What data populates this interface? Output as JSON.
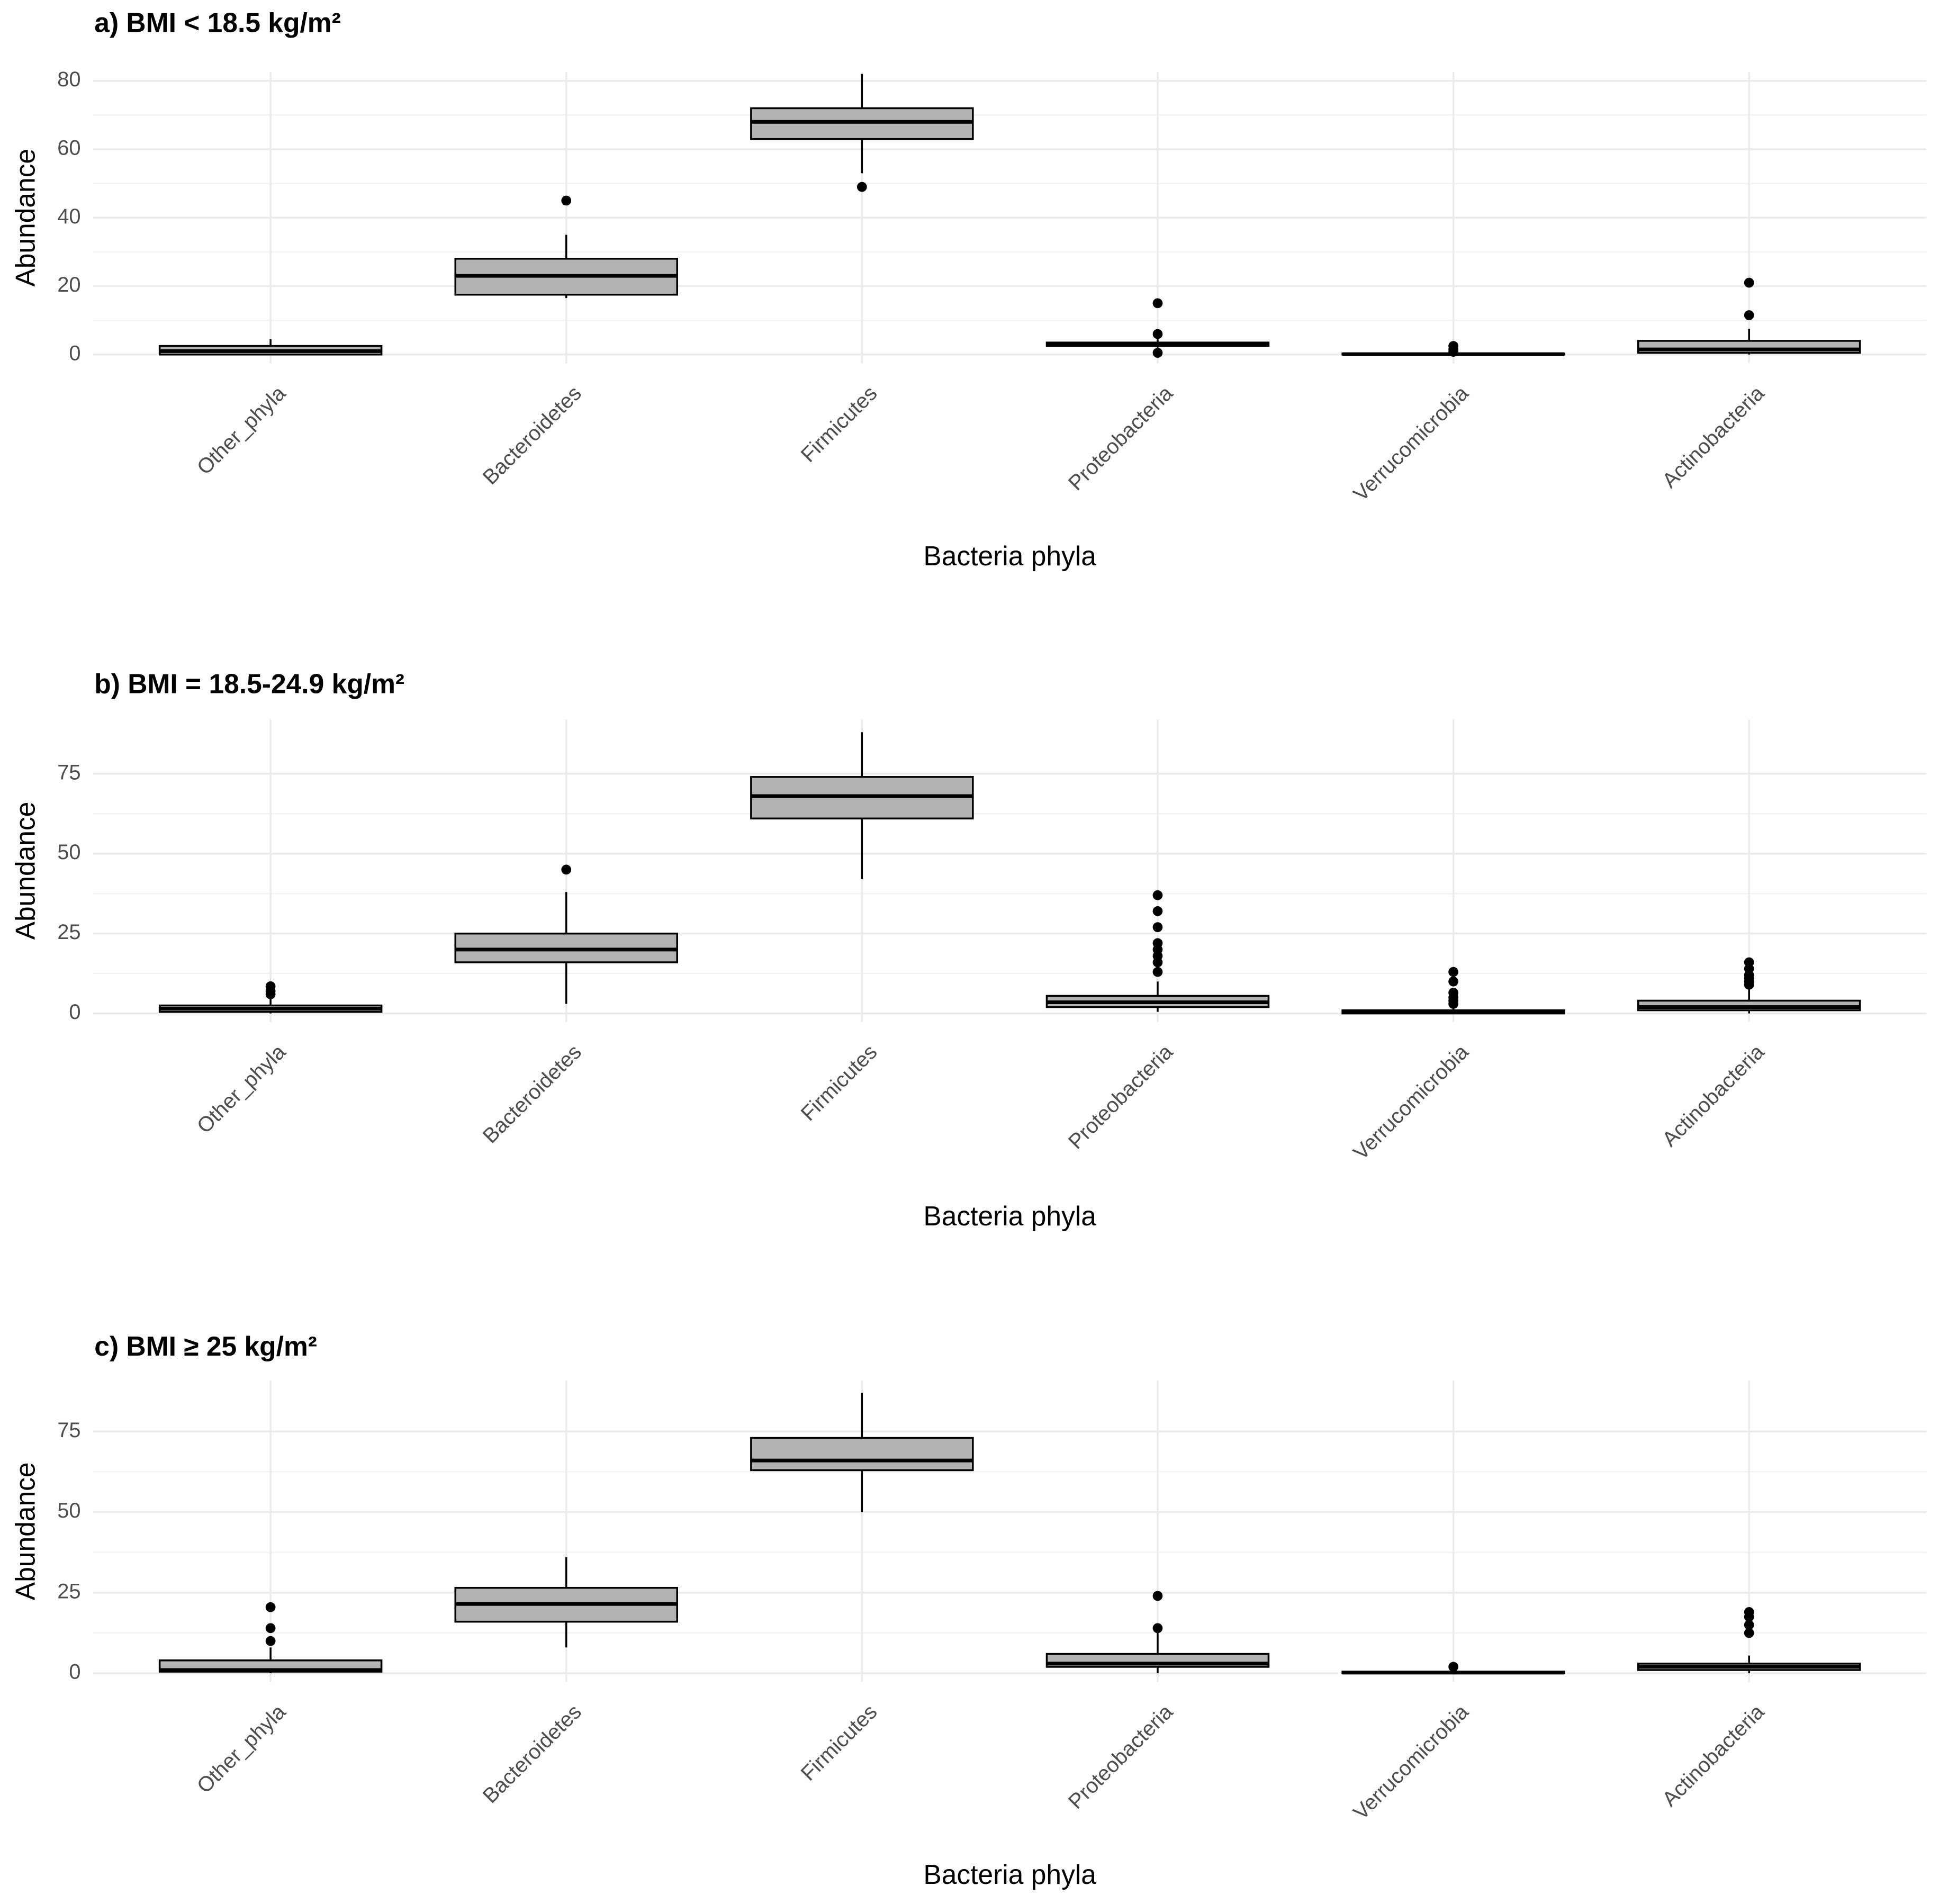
{
  "chart_data": [
    {
      "type": "box",
      "title": "a) BMI < 18.5 kg/m²",
      "x_label": "Bacteria phyla",
      "y_label": "Abundance",
      "color": "#b3b3b3",
      "grid": true,
      "ylim": [
        -2.6,
        82.6
      ],
      "yticks": [
        0,
        20,
        40,
        60,
        80
      ],
      "categories": [
        "Other_phyla",
        "Bacteroidetes",
        "Firmicutes",
        "Proteobacteria",
        "Verrucomicrobia",
        "Actinobacteria"
      ],
      "boxes": [
        {
          "min": 0,
          "q1": 0,
          "median": 1,
          "q3": 2.5,
          "max": 4.5,
          "outliers": []
        },
        {
          "min": 16.5,
          "q1": 17.5,
          "median": 23,
          "q3": 28,
          "max": 35,
          "outliers": [
            45
          ]
        },
        {
          "min": 53,
          "q1": 63,
          "median": 68,
          "q3": 72,
          "max": 82,
          "outliers": [
            49
          ]
        },
        {
          "min": 2,
          "q1": 2.5,
          "median": 3,
          "q3": 3.5,
          "max": 4.5,
          "outliers": [
            15,
            6,
            0.5
          ]
        },
        {
          "min": 0,
          "q1": 0,
          "median": 0.1,
          "q3": 0.3,
          "max": 0.5,
          "outliers": [
            2.5,
            1.5,
            0.8
          ]
        },
        {
          "min": 0,
          "q1": 0.5,
          "median": 1.5,
          "q3": 4,
          "max": 7.5,
          "outliers": [
            21,
            11.5
          ]
        }
      ]
    },
    {
      "type": "box",
      "title": "b) BMI = 18.5-24.9 kg/m²",
      "x_label": "Bacteria phyla",
      "y_label": "Abundance",
      "color": "#b3b3b3",
      "grid": true,
      "ylim": [
        -2.7,
        92
      ],
      "yticks": [
        0,
        25,
        50,
        75
      ],
      "categories": [
        "Other_phyla",
        "Bacteroidetes",
        "Firmicutes",
        "Proteobacteria",
        "Verrucomicrobia",
        "Actinobacteria"
      ],
      "boxes": [
        {
          "min": 0,
          "q1": 0.5,
          "median": 1.5,
          "q3": 2.5,
          "max": 5,
          "outliers": [
            8.5,
            7,
            6
          ]
        },
        {
          "min": 3,
          "q1": 16,
          "median": 20,
          "q3": 25,
          "max": 38,
          "outliers": [
            45
          ]
        },
        {
          "min": 42,
          "q1": 61,
          "median": 68,
          "q3": 74,
          "max": 88,
          "outliers": []
        },
        {
          "min": 0.5,
          "q1": 2,
          "median": 3.5,
          "q3": 5.5,
          "max": 10,
          "outliers": [
            13,
            16,
            18,
            20,
            22,
            27,
            32,
            37
          ]
        },
        {
          "min": 0,
          "q1": 0,
          "median": 0.5,
          "q3": 1,
          "max": 2.5,
          "outliers": [
            3,
            4,
            5,
            6.5,
            10,
            13
          ]
        },
        {
          "min": 0,
          "q1": 1,
          "median": 2,
          "q3": 4,
          "max": 8,
          "outliers": [
            9,
            10,
            11,
            12,
            14,
            16
          ]
        }
      ]
    },
    {
      "type": "box",
      "title": "c) BMI ≥ 25 kg/m²",
      "x_label": "Bacteria phyla",
      "y_label": "Abundance",
      "color": "#b3b3b3",
      "grid": true,
      "ylim": [
        -2.7,
        90.8
      ],
      "yticks": [
        0,
        25,
        50,
        75
      ],
      "categories": [
        "Other_phyla",
        "Bacteroidetes",
        "Firmicutes",
        "Proteobacteria",
        "Verrucomicrobia",
        "Actinobacteria"
      ],
      "boxes": [
        {
          "min": 0,
          "q1": 0.5,
          "median": 1,
          "q3": 4,
          "max": 8,
          "outliers": [
            10,
            14,
            20.5
          ]
        },
        {
          "min": 8,
          "q1": 16,
          "median": 21.5,
          "q3": 26.5,
          "max": 36,
          "outliers": []
        },
        {
          "min": 50,
          "q1": 63,
          "median": 66,
          "q3": 73,
          "max": 87,
          "outliers": []
        },
        {
          "min": 0,
          "q1": 2,
          "median": 3,
          "q3": 6,
          "max": 13,
          "outliers": [
            14,
            24
          ]
        },
        {
          "min": 0,
          "q1": 0,
          "median": 0.2,
          "q3": 0.5,
          "max": 0.8,
          "outliers": [
            2
          ]
        },
        {
          "min": 0,
          "q1": 1,
          "median": 2,
          "q3": 3,
          "max": 5.5,
          "outliers": [
            12.5,
            15,
            17.5,
            19
          ]
        }
      ]
    }
  ]
}
